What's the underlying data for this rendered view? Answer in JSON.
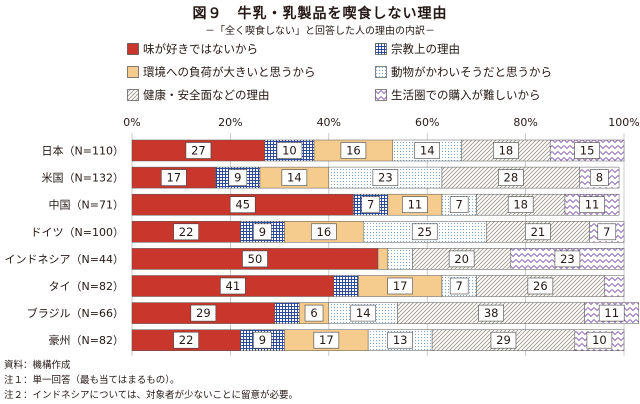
{
  "title": "図９　牛乳・乳製品を喫食しない理由",
  "subtitle": "－「全く喫食しない」と回答した人の理由の内訳－",
  "notes": [
    "資料：機構作成",
    "注１：単一回答（最も当てはまるもの）。",
    "注２：インドネシアについては、対象者が少ないことに留意が必要。"
  ],
  "legend": [
    {
      "label": "味が好きではないから",
      "color": "#c8362c",
      "pattern": "solid"
    },
    {
      "label": "宗教上の理由",
      "color": "#2e4a9a",
      "pattern": "grid"
    },
    {
      "label": "環境への負荷が大きいと思うから",
      "color": "#f6cc8e",
      "pattern": "solid"
    },
    {
      "label": "動物がかわいそうだと思うから",
      "color": "#7fa7c9",
      "pattern": "dots"
    },
    {
      "label": "健康・安全面などの理由",
      "color": "#a09a8c",
      "pattern": "diagonal"
    },
    {
      "label": "生活圏での購入が難しいから",
      "color": "#8a63b5",
      "pattern": "zigzag"
    }
  ],
  "chart_data": {
    "type": "bar",
    "orientation": "horizontal",
    "stacked": true,
    "percent_stacked": true,
    "categories": [
      "日本（N=110）",
      "米国（N=132）",
      "中国（N=71）",
      "ドイツ（N=100）",
      "インドネシア（N=44）",
      "タイ（N=82）",
      "ブラジル（N=66）",
      "豪州（N=82）"
    ],
    "x_ticks": [
      "0%",
      "20%",
      "40%",
      "60%",
      "80%",
      "100%"
    ],
    "xlim": [
      0,
      100
    ],
    "grid": true,
    "legend_position": "top",
    "series": [
      {
        "name": "味が好きではないから",
        "values": [
          27,
          17,
          45,
          22,
          50,
          41,
          29,
          22
        ]
      },
      {
        "name": "宗教上の理由",
        "values": [
          10,
          9,
          7,
          9,
          0,
          5,
          5,
          9
        ]
      },
      {
        "name": "環境への負荷が大きいと思うから",
        "values": [
          16,
          14,
          11,
          16,
          2,
          17,
          6,
          17
        ]
      },
      {
        "name": "動物がかわいそうだと思うから",
        "values": [
          14,
          23,
          7,
          25,
          5,
          7,
          14,
          13
        ]
      },
      {
        "name": "健康・安全面などの理由",
        "values": [
          18,
          28,
          18,
          21,
          20,
          26,
          38,
          29
        ]
      },
      {
        "name": "生活圏での購入が難しいから",
        "values": [
          15,
          8,
          11,
          7,
          23,
          4,
          11,
          10
        ]
      }
    ],
    "data_labels": [
      [
        27,
        10,
        16,
        14,
        18,
        15
      ],
      [
        17,
        9,
        14,
        23,
        28,
        8
      ],
      [
        45,
        7,
        11,
        7,
        18,
        11
      ],
      [
        22,
        9,
        16,
        25,
        21,
        7
      ],
      [
        50,
        null,
        null,
        null,
        20,
        23
      ],
      [
        41,
        null,
        17,
        7,
        26,
        null
      ],
      [
        29,
        null,
        6,
        14,
        38,
        11
      ],
      [
        22,
        9,
        17,
        13,
        29,
        10
      ]
    ]
  }
}
